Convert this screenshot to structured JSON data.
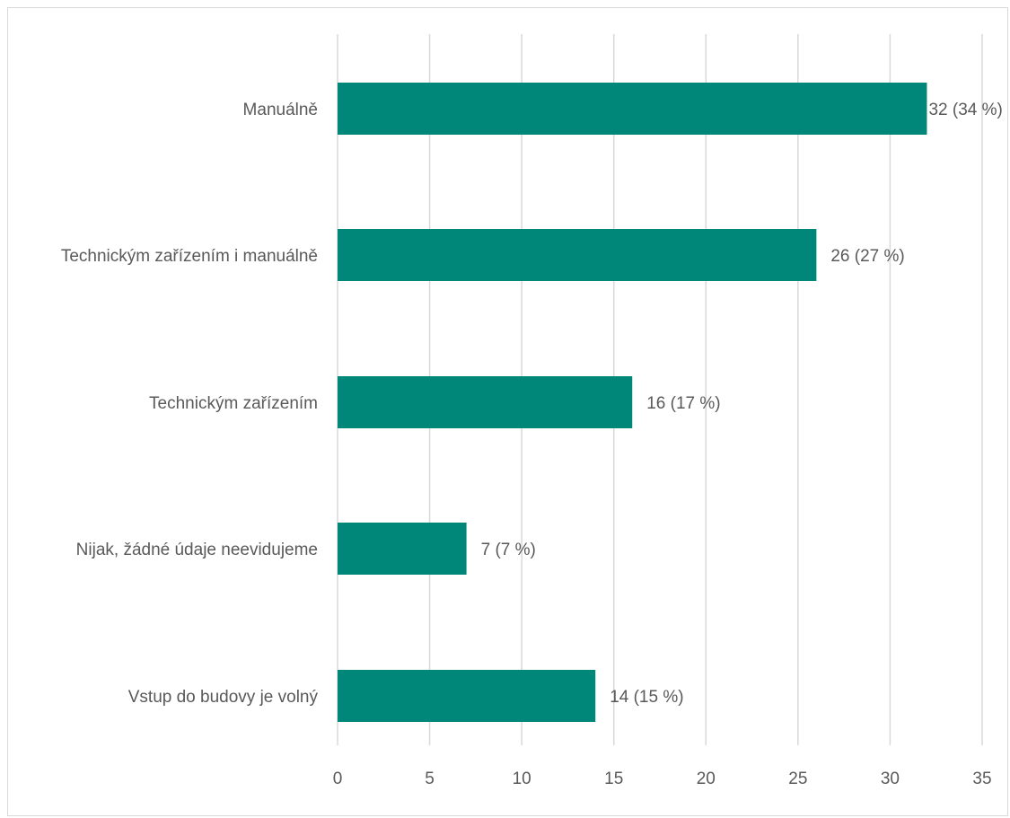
{
  "chart_data": {
    "type": "bar",
    "orientation": "horizontal",
    "categories": [
      "Manuálně",
      "Technickým zařízením i manuálně",
      "Technickým zařízením",
      "Nijak, žádné údaje neevidujeme",
      "Vstup do budovy je volný"
    ],
    "values": [
      32,
      26,
      16,
      7,
      14
    ],
    "data_labels": [
      "32 (34 %)",
      "26 (27 %)",
      "16 (17 %)",
      "7 (7 %)",
      "14 (15 %)"
    ],
    "x_ticks": [
      "0",
      "5",
      "10",
      "15",
      "20",
      "25",
      "30",
      "35"
    ],
    "xlim": [
      0,
      35
    ],
    "title": "",
    "xlabel": "",
    "ylabel": "",
    "grid": "vertical",
    "legend": "none",
    "bar_color": "#00877A",
    "gridline_color": "#d9d9d9",
    "text_color": "#595959"
  }
}
